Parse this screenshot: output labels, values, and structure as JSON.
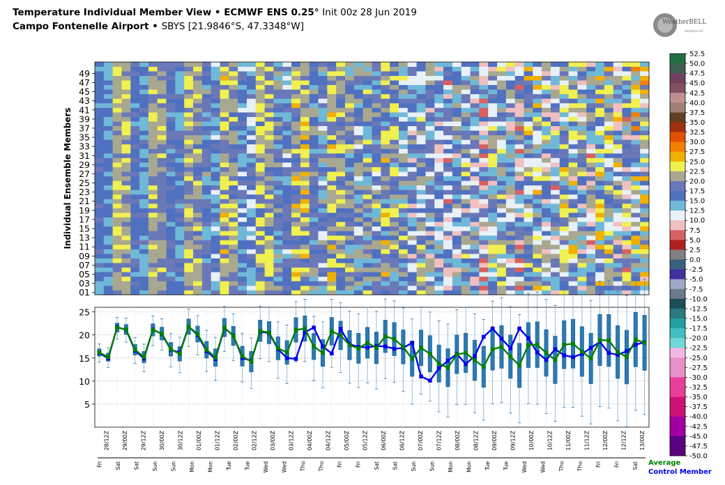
{
  "header": {
    "title": "Temperature Individual Member View • ECMWF ENS 0.25",
    "title_degree": "°",
    "init": "Init 00z 28 Jun 2019",
    "location": "Campo Fontenelle Airport",
    "station": "SBYS [21.9846°S, 47.3348°W]",
    "logo_text": "WeatherBELL",
    "logo_subtext": "Analytics LLC"
  },
  "legend": {
    "average": "Average",
    "control": "Control Member"
  },
  "colors": {
    "average": "#008000",
    "control": "#0000ee",
    "box": "#2a7ab5"
  },
  "chart_data": [
    {
      "type": "heatmap",
      "ylabel": "Individual Ensemble Members",
      "y_ticks": [
        "01",
        "03",
        "05",
        "07",
        "09",
        "11",
        "13",
        "15",
        "17",
        "19",
        "21",
        "23",
        "25",
        "27",
        "29",
        "31",
        "33",
        "35",
        "37",
        "39",
        "41",
        "43",
        "45",
        "47",
        "49"
      ],
      "members": 51,
      "colorbar": {
        "ticks": [
          "52.5",
          "50.0",
          "47.5",
          "45.0",
          "42.5",
          "40.0",
          "37.5",
          "35.0",
          "32.5",
          "30.0",
          "27.5",
          "25.0",
          "22.5",
          "20.0",
          "17.5",
          "15.0",
          "12.5",
          "10.0",
          "7.5",
          "5.0",
          "2.5",
          "0.0",
          "-2.5",
          "-5.0",
          "-7.5",
          "-10.0",
          "-12.5",
          "-15.0",
          "-17.5",
          "-20.0",
          "-22.5",
          "-25.0",
          "-27.5",
          "-30.0",
          "-32.5",
          "-35.0",
          "-37.5",
          "-40.0",
          "-42.5",
          "-45.0",
          "-47.5",
          "-50.0"
        ],
        "range": [
          -50,
          52.5
        ]
      }
    },
    {
      "type": "box-line",
      "ylim": [
        0,
        26
      ],
      "y_ticks": [
        "5",
        "10",
        "15",
        "20",
        "25"
      ],
      "grid": true,
      "x_labels": [
        "28/12Z",
        "29/00Z",
        "29/12Z",
        "30/00Z",
        "30/12Z",
        "01/00Z",
        "01/12Z",
        "02/00Z",
        "02/12Z",
        "03/00Z",
        "03/12Z",
        "04/00Z",
        "04/12Z",
        "05/00Z",
        "05/12Z",
        "06/00Z",
        "06/12Z",
        "07/00Z",
        "07/12Z",
        "08/00Z",
        "08/12Z",
        "09/00Z",
        "09/12Z",
        "10/00Z",
        "10/12Z",
        "11/00Z",
        "11/12Z",
        "12/00Z",
        "12/12Z",
        "13/00Z"
      ],
      "day_labels": [
        "Fri",
        "Sat",
        "Sat",
        "Sun",
        "Sun",
        "Mon",
        "Mon",
        "Tue",
        "Tue",
        "Wed",
        "Wed",
        "Thu",
        "Thu",
        "Fri",
        "Fri",
        "Sat",
        "Sat",
        "Sun",
        "Sun",
        "Mon",
        "Mon",
        "Tue",
        "Tue",
        "Wed",
        "Wed",
        "Thu",
        "Thu",
        "Fri",
        "Fri",
        "Sat"
      ],
      "average": [
        16.2,
        15.2,
        21.6,
        21.2,
        16.8,
        15.2,
        21.1,
        20.3,
        16.9,
        15.9,
        21.8,
        20.2,
        16.8,
        15.1,
        21.6,
        19.8,
        15.4,
        14.2,
        20.9,
        20.5,
        17.1,
        16.2,
        21.1,
        21.4,
        17.5,
        16.1,
        20.8,
        19.9,
        17.8,
        17.1,
        18.3,
        17.2,
        19.7,
        19.1,
        17.4,
        14.8,
        17.2,
        15.9,
        13.8,
        12.9,
        15.8,
        16.1,
        14.5,
        13.1,
        16.9,
        17.4,
        15.3,
        13.4,
        17.8,
        17.9,
        16.1,
        14.6,
        17.9,
        18.1,
        16.4,
        14.9,
        18.9,
        18.8,
        16.3,
        15.2,
        19.0,
        18.3
      ],
      "control": [
        16.1,
        14.9,
        21.7,
        21.1,
        16.6,
        14.9,
        21.2,
        20.2,
        16.8,
        16.2,
        21.8,
        20.0,
        16.5,
        14.8,
        21.5,
        19.9,
        15.0,
        14.4,
        20.7,
        20.4,
        16.9,
        15.0,
        14.8,
        20.6,
        21.6,
        17.5,
        16.0,
        21.3,
        18.0,
        17.4,
        17.3,
        17.6,
        17.5,
        17.0,
        17.2,
        18.3,
        11.0,
        10.1,
        12.8,
        14.4,
        15.9,
        13.7,
        15.4,
        19.6,
        21.4,
        19.2,
        17.1,
        21.4,
        19.3,
        16.2,
        14.6,
        16.9,
        15.6,
        15.2,
        15.9,
        17.2,
        18.5,
        16.1,
        15.7,
        16.5,
        17.9,
        18.4
      ]
    }
  ]
}
